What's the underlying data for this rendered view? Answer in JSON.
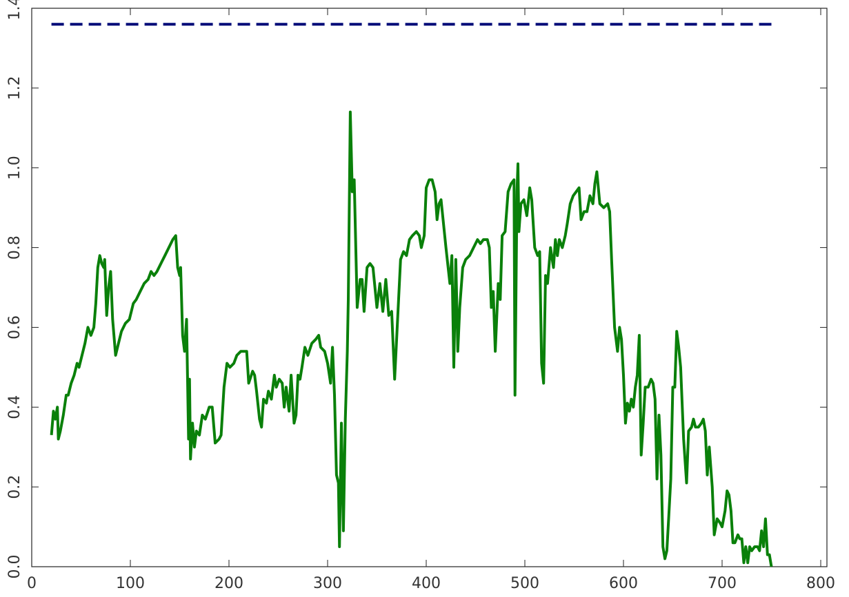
{
  "chart_data": {
    "type": "line",
    "xlim": [
      0,
      800
    ],
    "ylim": [
      0,
      1.4
    ],
    "xticks": [
      0,
      100,
      200,
      300,
      400,
      500,
      600,
      700,
      800
    ],
    "yticks": [
      {
        "value": 0,
        "label": "0.0"
      },
      0.2,
      0.4,
      0.6,
      0.8,
      {
        "value": 1,
        "label": "1.0"
      },
      1.2,
      1.4
    ],
    "series": [
      {
        "color": "#0a800a",
        "dash": false,
        "x": [
          20,
          22,
          24,
          26,
          27,
          29,
          32,
          35,
          37,
          40,
          43,
          46,
          48,
          51,
          54,
          57,
          60,
          63,
          65,
          67,
          69,
          71,
          73,
          74,
          76,
          78,
          80,
          82,
          85,
          88,
          91,
          95,
          99,
          103,
          106,
          110,
          114,
          118,
          121,
          124,
          127,
          131,
          135,
          139,
          143,
          146,
          148,
          150,
          151,
          153,
          155,
          157,
          159,
          160,
          161,
          163,
          165,
          167,
          170,
          173,
          176,
          180,
          183,
          186,
          190,
          192,
          195,
          198,
          201,
          205,
          208,
          212,
          216,
          218,
          220,
          224,
          226,
          228,
          231,
          233,
          235,
          238,
          240,
          243,
          246,
          248,
          251,
          254,
          256,
          258,
          261,
          263,
          266,
          268,
          270,
          272,
          274,
          277,
          280,
          284,
          288,
          291,
          293,
          297,
          300,
          303,
          305,
          307,
          309,
          311,
          312,
          314,
          316,
          318,
          320,
          321,
          323,
          325,
          327,
          330,
          333,
          335,
          337,
          340,
          343,
          346,
          350,
          353,
          356,
          359,
          362,
          365,
          368,
          371,
          374,
          377,
          380,
          383,
          386,
          390,
          393,
          395,
          398,
          400,
          403,
          406,
          409,
          411,
          413,
          415,
          420,
          424,
          426,
          428,
          430,
          432,
          434,
          437,
          440,
          444,
          448,
          452,
          455,
          458,
          462,
          464,
          466,
          468,
          470,
          473,
          475,
          477,
          480,
          483,
          486,
          489,
          490,
          492,
          493,
          494,
          496,
          499,
          502,
          505,
          507,
          510,
          513,
          515,
          517,
          519,
          521,
          523,
          526,
          529,
          531,
          533,
          535,
          538,
          541,
          543,
          546,
          549,
          552,
          555,
          557,
          560,
          563,
          566,
          569,
          571,
          573,
          576,
          580,
          584,
          586,
          588,
          591,
          594,
          596,
          598,
          600,
          602,
          604,
          606,
          608,
          610,
          612,
          614,
          616,
          618,
          620,
          622,
          625,
          628,
          630,
          632,
          634,
          636,
          638,
          640,
          642,
          644,
          646,
          648,
          650,
          652,
          654,
          656,
          658,
          661,
          664,
          666,
          669,
          671,
          673,
          676,
          679,
          681,
          683,
          685,
          687,
          690,
          692,
          695,
          698,
          700,
          703,
          705,
          707,
          709,
          711,
          713,
          716,
          718,
          720,
          722,
          724,
          726,
          728,
          730,
          733,
          736,
          738,
          740,
          742,
          744,
          746,
          748,
          750
        ],
        "values": [
          0.33,
          0.39,
          0.37,
          0.4,
          0.32,
          0.34,
          0.38,
          0.43,
          0.43,
          0.46,
          0.48,
          0.51,
          0.5,
          0.53,
          0.56,
          0.6,
          0.58,
          0.6,
          0.66,
          0.75,
          0.78,
          0.76,
          0.75,
          0.77,
          0.63,
          0.7,
          0.74,
          0.62,
          0.53,
          0.56,
          0.59,
          0.61,
          0.62,
          0.66,
          0.67,
          0.69,
          0.71,
          0.72,
          0.74,
          0.73,
          0.74,
          0.76,
          0.78,
          0.8,
          0.82,
          0.83,
          0.75,
          0.73,
          0.75,
          0.58,
          0.54,
          0.62,
          0.32,
          0.47,
          0.27,
          0.36,
          0.3,
          0.34,
          0.33,
          0.38,
          0.37,
          0.4,
          0.4,
          0.31,
          0.32,
          0.33,
          0.45,
          0.51,
          0.5,
          0.51,
          0.53,
          0.54,
          0.54,
          0.54,
          0.46,
          0.49,
          0.48,
          0.44,
          0.37,
          0.35,
          0.42,
          0.41,
          0.44,
          0.42,
          0.48,
          0.45,
          0.47,
          0.46,
          0.4,
          0.45,
          0.39,
          0.48,
          0.36,
          0.38,
          0.48,
          0.47,
          0.5,
          0.55,
          0.53,
          0.56,
          0.57,
          0.58,
          0.55,
          0.54,
          0.51,
          0.46,
          0.55,
          0.43,
          0.23,
          0.21,
          0.05,
          0.36,
          0.09,
          0.37,
          0.54,
          0.67,
          1.14,
          0.94,
          0.97,
          0.65,
          0.72,
          0.72,
          0.64,
          0.75,
          0.76,
          0.75,
          0.65,
          0.71,
          0.64,
          0.72,
          0.63,
          0.64,
          0.47,
          0.62,
          0.77,
          0.79,
          0.78,
          0.82,
          0.83,
          0.84,
          0.83,
          0.8,
          0.83,
          0.95,
          0.97,
          0.97,
          0.94,
          0.87,
          0.91,
          0.92,
          0.8,
          0.71,
          0.78,
          0.5,
          0.77,
          0.54,
          0.65,
          0.75,
          0.77,
          0.78,
          0.8,
          0.82,
          0.81,
          0.82,
          0.82,
          0.8,
          0.65,
          0.69,
          0.54,
          0.71,
          0.67,
          0.83,
          0.84,
          0.94,
          0.96,
          0.97,
          0.43,
          0.94,
          1.01,
          0.84,
          0.91,
          0.92,
          0.88,
          0.95,
          0.92,
          0.8,
          0.78,
          0.79,
          0.51,
          0.46,
          0.73,
          0.71,
          0.8,
          0.75,
          0.82,
          0.78,
          0.82,
          0.8,
          0.83,
          0.86,
          0.91,
          0.93,
          0.94,
          0.95,
          0.87,
          0.89,
          0.89,
          0.93,
          0.91,
          0.96,
          0.99,
          0.91,
          0.9,
          0.91,
          0.89,
          0.77,
          0.6,
          0.54,
          0.6,
          0.57,
          0.48,
          0.36,
          0.41,
          0.39,
          0.42,
          0.4,
          0.45,
          0.48,
          0.58,
          0.28,
          0.36,
          0.45,
          0.45,
          0.47,
          0.46,
          0.42,
          0.22,
          0.38,
          0.28,
          0.05,
          0.02,
          0.04,
          0.13,
          0.22,
          0.45,
          0.45,
          0.59,
          0.55,
          0.5,
          0.32,
          0.21,
          0.34,
          0.35,
          0.37,
          0.35,
          0.35,
          0.36,
          0.37,
          0.34,
          0.23,
          0.3,
          0.2,
          0.08,
          0.12,
          0.11,
          0.1,
          0.14,
          0.19,
          0.18,
          0.14,
          0.06,
          0.06,
          0.08,
          0.07,
          0.07,
          0.01,
          0.05,
          0.01,
          0.05,
          0.04,
          0.05,
          0.05,
          0.04,
          0.09,
          0.05,
          0.12,
          0.03,
          0.03,
          0
        ]
      },
      {
        "color": "#000a78",
        "dash": true,
        "x": [
          20,
          750
        ],
        "values": [
          1.36,
          1.36
        ]
      }
    ]
  }
}
